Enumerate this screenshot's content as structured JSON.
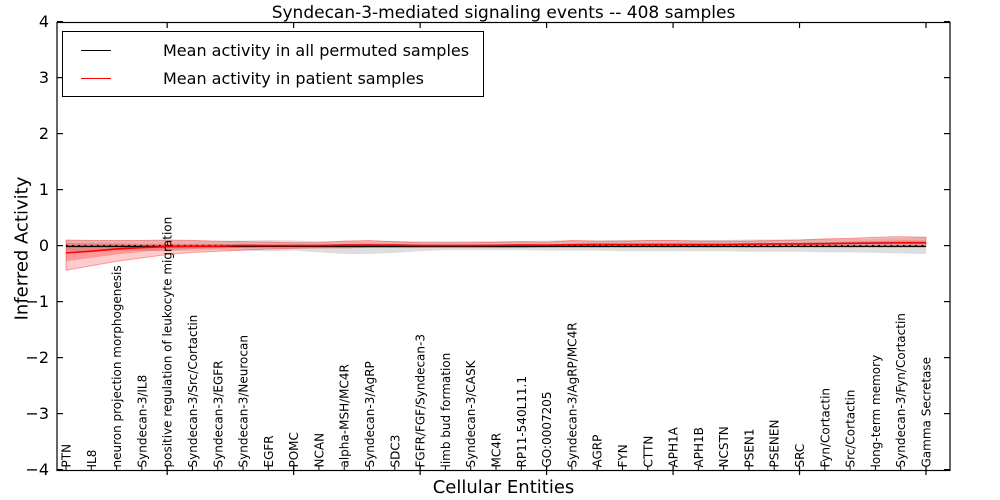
{
  "figure": {
    "title": "Syndecan-3-mediated signaling events -- 408 samples",
    "xlabel": "Cellular Entities",
    "ylabel": "Inferred Activity"
  },
  "legend": {
    "items": [
      {
        "label": "Mean activity in all permuted samples",
        "color": "#000000"
      },
      {
        "label": "Mean activity in patient samples",
        "color": "#ff0000"
      }
    ]
  },
  "colors": {
    "background": "#ffffff",
    "axis": "#000000",
    "permuted_line": "#000000",
    "patient_line": "#ff0000",
    "permuted_band": "#000000",
    "patient_band": "#ff0000",
    "zero_line": "#000000"
  },
  "chart_data": {
    "type": "line",
    "title": "Syndecan-3-mediated signaling events -- 408 samples",
    "xlabel": "Cellular Entities",
    "ylabel": "Inferred Activity",
    "ylim": [
      -4,
      4
    ],
    "yticks": [
      "−4",
      "−3",
      "−2",
      "−1",
      "0",
      "1",
      "2",
      "3",
      "4"
    ],
    "ytick_values": [
      -4,
      -3,
      -2,
      -1,
      0,
      1,
      2,
      3,
      4
    ],
    "grid": false,
    "legend_position": "upper-left",
    "categories": [
      "PTN",
      "IL8",
      "neuron projection morphogenesis",
      "Syndecan-3/IL8",
      "positive regulation of leukocyte migration",
      "Syndecan-3/Src/Cortactin",
      "Syndecan-3/EGFR",
      "Syndecan-3/Neurocan",
      "EGFR",
      "POMC",
      "NCAN",
      "alpha-MSH/MC4R",
      "Syndecan-3/AgRP",
      "SDC3",
      "FGFR/FGF/Syndecan-3",
      "limb bud formation",
      "Syndecan-3/CASK",
      "MC4R",
      "RP11-540L11.1",
      "GO:0007205",
      "Syndecan-3/AgRP/MC4R",
      "AGRP",
      "FYN",
      "CTTN",
      "APH1A",
      "APH1B",
      "NCSTN",
      "PSEN1",
      "PSENEN",
      "SRC",
      "Fyn/Cortactin",
      "Src/Cortactin",
      "long-term memory",
      "Syndecan-3/Fyn/Cortactin",
      "Gamma Secretase"
    ],
    "series": [
      {
        "name": "Mean activity in all permuted samples",
        "values": [
          -0.015,
          -0.015,
          -0.015,
          -0.015,
          -0.015,
          -0.015,
          -0.015,
          -0.015,
          -0.015,
          -0.015,
          -0.015,
          -0.015,
          -0.015,
          -0.015,
          -0.015,
          -0.015,
          -0.015,
          -0.015,
          -0.015,
          -0.015,
          -0.015,
          -0.015,
          -0.015,
          -0.015,
          -0.015,
          -0.015,
          -0.015,
          -0.015,
          -0.015,
          -0.015,
          -0.015,
          -0.015,
          -0.015,
          -0.015,
          -0.015
        ]
      },
      {
        "name": "Mean activity in patient samples",
        "values": [
          -0.13,
          -0.1,
          -0.06,
          -0.035,
          -0.02,
          -0.01,
          -0.01,
          0.0,
          0.0,
          0.0,
          0.0,
          0.01,
          0.01,
          0.01,
          0.0,
          0.0,
          0.0,
          0.005,
          0.01,
          0.01,
          0.015,
          0.02,
          0.02,
          0.02,
          0.02,
          0.02,
          0.02,
          0.025,
          0.03,
          0.03,
          0.035,
          0.04,
          0.045,
          0.05,
          0.05
        ]
      }
    ],
    "bands": {
      "permuted_upper": [
        0.1,
        0.09,
        0.09,
        0.09,
        0.1,
        0.09,
        0.08,
        0.09,
        0.1,
        0.09,
        0.08,
        0.08,
        0.08,
        0.08,
        0.08,
        0.08,
        0.08,
        0.08,
        0.08,
        0.09,
        0.09,
        0.09,
        0.1,
        0.1,
        0.1,
        0.1,
        0.1,
        0.11,
        0.11,
        0.11,
        0.12,
        0.12,
        0.13,
        0.14,
        0.15
      ],
      "permuted_lower": [
        -0.1,
        -0.09,
        -0.09,
        -0.09,
        -0.1,
        -0.09,
        -0.08,
        -0.09,
        -0.1,
        -0.09,
        -0.12,
        -0.15,
        -0.15,
        -0.13,
        -0.1,
        -0.08,
        -0.08,
        -0.08,
        -0.08,
        -0.09,
        -0.09,
        -0.09,
        -0.1,
        -0.1,
        -0.1,
        -0.1,
        -0.1,
        -0.11,
        -0.11,
        -0.11,
        -0.12,
        -0.12,
        -0.13,
        -0.14,
        -0.15
      ],
      "patient_outer_upper": [
        0.1,
        0.09,
        0.09,
        0.09,
        0.1,
        0.09,
        0.08,
        0.07,
        0.06,
        0.05,
        0.05,
        0.08,
        0.09,
        0.07,
        0.05,
        0.05,
        0.05,
        0.06,
        0.07,
        0.06,
        0.09,
        0.08,
        0.08,
        0.09,
        0.09,
        0.08,
        0.08,
        0.08,
        0.09,
        0.1,
        0.12,
        0.13,
        0.15,
        0.16,
        0.15
      ],
      "patient_outer_lower": [
        -0.44,
        -0.36,
        -0.28,
        -0.22,
        -0.16,
        -0.12,
        -0.1,
        -0.08,
        -0.06,
        -0.05,
        -0.04,
        -0.04,
        -0.03,
        -0.03,
        -0.03,
        -0.03,
        -0.03,
        -0.03,
        -0.03,
        -0.02,
        -0.02,
        -0.02,
        -0.02,
        -0.02,
        -0.02,
        -0.02,
        -0.02,
        -0.02,
        -0.02,
        -0.01,
        -0.01,
        -0.01,
        -0.01,
        -0.01,
        0.0
      ],
      "patient_inner_upper": [
        0.05,
        0.04,
        0.04,
        0.03,
        0.03,
        0.03,
        0.03,
        0.03,
        0.02,
        0.02,
        0.02,
        0.03,
        0.04,
        0.03,
        0.02,
        0.02,
        0.02,
        0.02,
        0.03,
        0.02,
        0.04,
        0.04,
        0.03,
        0.03,
        0.03,
        0.03,
        0.03,
        0.04,
        0.04,
        0.05,
        0.06,
        0.07,
        0.08,
        0.09,
        0.09
      ],
      "patient_inner_lower": [
        -0.28,
        -0.22,
        -0.16,
        -0.11,
        -0.08,
        -0.06,
        -0.05,
        -0.04,
        -0.03,
        -0.03,
        -0.02,
        -0.02,
        -0.01,
        -0.01,
        -0.01,
        -0.01,
        -0.01,
        -0.01,
        -0.01,
        -0.01,
        0.0,
        0.0,
        0.0,
        0.0,
        0.0,
        0.0,
        0.0,
        0.01,
        0.01,
        0.01,
        0.01,
        0.02,
        0.02,
        0.02,
        0.02
      ]
    },
    "zero_reference_line": 0,
    "x_major_tick_positions": [
      5,
      10,
      15,
      20,
      25,
      30,
      35
    ]
  }
}
